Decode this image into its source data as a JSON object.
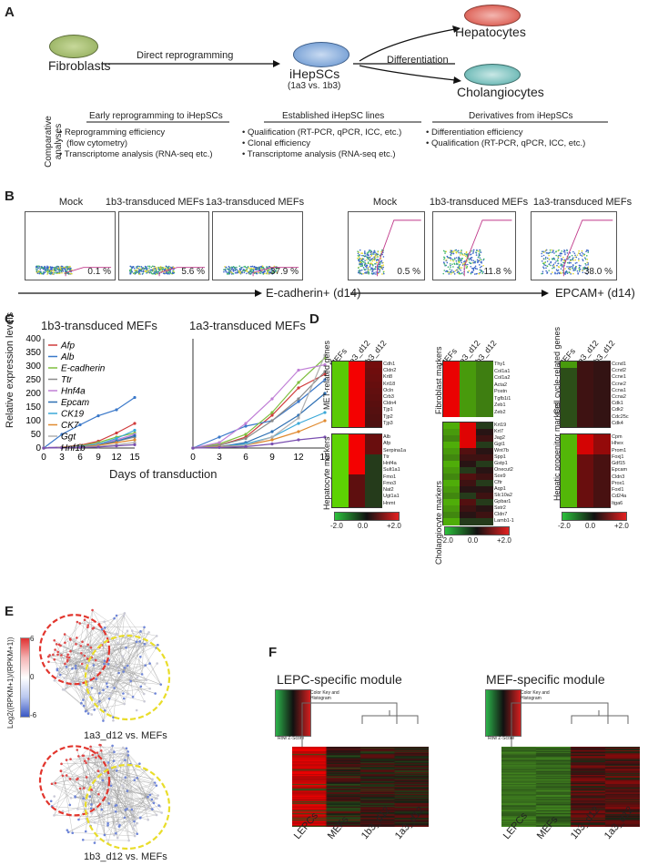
{
  "panel_a": {
    "label": "A",
    "fibroblasts": "Fibroblasts",
    "arrow_label": "Direct reprogramming",
    "ihepscs": "iHepSCs",
    "ihepscs_sub": "(1a3 vs. 1b3)",
    "differentiation": "Differentiation",
    "hepatocytes": "Hepatocytes",
    "cholangiocytes": "Cholangiocytes",
    "comparative": "Comparative analyses",
    "col1_title": "Early reprogramming to iHepSCs",
    "col1_items": [
      "Reprogramming efficiency",
      "(flow cytometry)",
      "Transcriptome analysis (RNA-seq etc.)"
    ],
    "col2_title": "Established iHepSC lines",
    "col2_items": [
      "Qualification (RT-PCR, qPCR, ICC, etc.)",
      "Clonal efficiency",
      "Transcriptome analysis (RNA-seq etc.)"
    ],
    "col3_title": "Derivatives from iHepSCs",
    "col3_items": [
      "Differentiation efficiency",
      "Qualification (RT-PCR, qPCR, ICC, etc.)"
    ]
  },
  "panel_b": {
    "label": "B",
    "left_titles": [
      "Mock",
      "1b3-transduced MEFs",
      "1a3-transduced MEFs"
    ],
    "left_pcts": [
      "0.1 %",
      "5.6 %",
      "37.9 %"
    ],
    "left_axis": "E-cadherin+ (d14)",
    "right_titles": [
      "Mock",
      "1b3-transduced MEFs",
      "1a3-transduced MEFs"
    ],
    "right_pcts": [
      "0.5 %",
      "11.8 %",
      "38.0 %"
    ],
    "right_axis": "EPCAM+  (d14)"
  },
  "panel_c": {
    "label": "C",
    "ylabel": "Relative expression levels",
    "xlabel": "Days of transduction",
    "legend_items": [
      {
        "name": "Afp",
        "color": "#d03b3b"
      },
      {
        "name": "Alb",
        "color": "#3a78c9"
      },
      {
        "name": "E-cadherin",
        "color": "#7fbf3f"
      },
      {
        "name": "Ttr",
        "color": "#8a8a8a"
      },
      {
        "name": "Hnf4a",
        "color": "#c07fd6"
      },
      {
        "name": "Epcam",
        "color": "#2d6fb3"
      },
      {
        "name": "CK19",
        "color": "#3aa8d8"
      },
      {
        "name": "CK7",
        "color": "#e08a2f"
      },
      {
        "name": "Ggt",
        "color": "#b0b0b0"
      },
      {
        "name": "Hnf1b",
        "color": "#7a4fb0"
      }
    ]
  },
  "chart_data": [
    {
      "type": "line",
      "title": "1b3-transduced MEFs",
      "xlabel": "Days of transduction",
      "ylabel": "Relative expression levels",
      "x": [
        0,
        3,
        6,
        9,
        12,
        15
      ],
      "ylim": [
        0,
        400
      ],
      "yticks": [
        0,
        50,
        100,
        150,
        200,
        250,
        300,
        350,
        400
      ],
      "series": [
        {
          "name": "Afp",
          "values": [
            0,
            3,
            10,
            25,
            55,
            90
          ]
        },
        {
          "name": "Alb",
          "values": [
            0,
            50,
            85,
            118,
            140,
            185
          ]
        },
        {
          "name": "E-cadherin",
          "values": [
            0,
            2,
            8,
            20,
            40,
            55
          ]
        },
        {
          "name": "Ttr",
          "values": [
            0,
            2,
            5,
            12,
            25,
            40
          ]
        },
        {
          "name": "Hnf4a",
          "values": [
            0,
            2,
            6,
            15,
            30,
            50
          ]
        },
        {
          "name": "Epcam",
          "values": [
            0,
            2,
            5,
            10,
            25,
            45
          ]
        },
        {
          "name": "CK19",
          "values": [
            0,
            2,
            6,
            14,
            35,
            65
          ]
        },
        {
          "name": "CK7",
          "values": [
            0,
            2,
            4,
            10,
            20,
            30
          ]
        },
        {
          "name": "Ggt",
          "values": [
            0,
            1,
            3,
            6,
            12,
            20
          ]
        },
        {
          "name": "Hnf1b",
          "values": [
            0,
            1,
            2,
            4,
            8,
            12
          ]
        }
      ]
    },
    {
      "type": "line",
      "title": "1a3-transduced MEFs",
      "xlabel": "Days of transduction",
      "x": [
        0,
        3,
        6,
        9,
        12,
        15
      ],
      "ylim": [
        0,
        400
      ],
      "series": [
        {
          "name": "Afp",
          "values": [
            0,
            10,
            40,
            120,
            220,
            270
          ]
        },
        {
          "name": "Alb",
          "values": [
            0,
            40,
            80,
            100,
            170,
            250
          ]
        },
        {
          "name": "E-cadherin",
          "values": [
            0,
            15,
            50,
            130,
            240,
            330
          ]
        },
        {
          "name": "Ttr",
          "values": [
            0,
            10,
            35,
            100,
            180,
            280
          ]
        },
        {
          "name": "Hnf4a",
          "values": [
            0,
            20,
            90,
            180,
            285,
            305
          ]
        },
        {
          "name": "Epcam",
          "values": [
            0,
            5,
            20,
            60,
            120,
            200
          ]
        },
        {
          "name": "CK19",
          "values": [
            0,
            5,
            15,
            40,
            90,
            130
          ]
        },
        {
          "name": "CK7",
          "values": [
            0,
            5,
            10,
            30,
            60,
            100
          ]
        },
        {
          "name": "Ggt",
          "values": [
            0,
            3,
            10,
            40,
            110,
            340
          ]
        },
        {
          "name": "Hnf1b",
          "values": [
            0,
            2,
            5,
            15,
            30,
            40
          ]
        }
      ]
    }
  ],
  "panel_d": {
    "label": "D",
    "col_headers": [
      "MEFs",
      "1a3_d12",
      "1b3_d12"
    ],
    "groups": [
      {
        "title": "MET-related genes",
        "genes": [
          "Cdh1",
          "Cldn2",
          "Krt8",
          "Krt18",
          "Ocln",
          "Crb3",
          "Cldn4",
          "Tjp1",
          "Tjp2",
          "Tjp3"
        ]
      },
      {
        "title": "Hepatocyte markers",
        "genes": [
          "Alb",
          "Afp",
          "Serpina1a",
          "Ttr",
          "Hnf4a",
          "Sult1a1",
          "Fmo1",
          "Fmo3",
          "Nat2",
          "Ugt1a1",
          "Hnmt"
        ]
      },
      {
        "title": "Fibroblast markers",
        "genes": [
          "Thy1",
          "Col1a1",
          "Col1a2",
          "Acta2",
          "Postn",
          "Tgfb1i1",
          "Zeb1",
          "Zeb2"
        ]
      },
      {
        "title": "Cholangiocyte markers",
        "genes": [
          "Krt19",
          "Krt7",
          "Jag2",
          "Ggt1",
          "Wnt7b",
          "Spp1",
          "Gstp1",
          "Onecut2",
          "Sox9",
          "Cftr",
          "Aqp1",
          "Slc10a2",
          "Gpbar1",
          "Sstr2",
          "Cldn7",
          "Lamb1-1"
        ]
      },
      {
        "title": "Cell cycle-related genes",
        "genes": [
          "Ccnd1",
          "Ccnd2",
          "Ccne1",
          "Ccne2",
          "Ccna1",
          "Ccna2",
          "Cdk1",
          "Cdk2",
          "Cdc25c",
          "Cdk4"
        ]
      },
      {
        "title": "Hepatic progenitor markers",
        "genes": [
          "Cpm",
          "Hhex",
          "Prom1",
          "Foxj1",
          "Gdf15",
          "Epcam",
          "Cldn3",
          "Prox1",
          "Foxl1",
          "Cd24a",
          "Itga6"
        ]
      }
    ],
    "scale_min": "-2.0",
    "scale_mid": "0.0",
    "scale_max": "+2.0"
  },
  "panel_e": {
    "label": "E",
    "colorbar_label": "Log2((RPKM+1)/(RPKM+1))",
    "colorbar_max": "6",
    "colorbar_mid": "0",
    "colorbar_min": "-6",
    "net1_caption": "1a3_d12 vs. MEFs",
    "net2_caption": "1b3_d12 vs. MEFs"
  },
  "panel_f": {
    "label": "F",
    "left_title": "LEPC-specific module",
    "right_title": "MEF-specific module",
    "left_cols": [
      "LEPCs",
      "MEFs",
      "1b3_d12",
      "1a3_d12"
    ],
    "right_cols": [
      "LEPCs",
      "MEFs",
      "1b3_d12",
      "1a3_d12"
    ],
    "color_key_title": "Color Key and Histogram",
    "color_key_x": "Row Z-Score",
    "color_key_y": "Count"
  }
}
